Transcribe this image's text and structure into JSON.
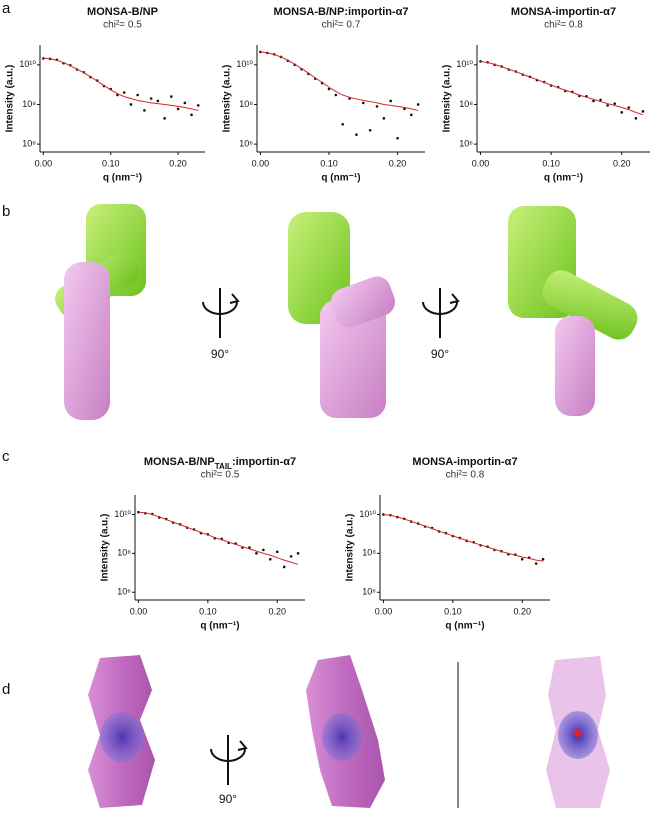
{
  "panel_labels": [
    "a",
    "b",
    "c",
    "d"
  ],
  "rotation_labels": [
    "90°",
    "90°",
    "90°"
  ],
  "chart_data": [
    {
      "type": "scatter",
      "title": "MONSA-B/NP",
      "subtitle": "chi²= 0.5",
      "x_label": "q (nm⁻¹)",
      "y_label": "Intensity (a.u.)",
      "log_y": true,
      "xlim": [
        -0.005,
        0.24
      ],
      "xticks": [
        {
          "value": 0,
          "label": "0.00"
        },
        {
          "value": 0.1,
          "label": "0.10"
        },
        {
          "value": 0.2,
          "label": "0.20"
        }
      ],
      "ylim": [
        400000,
        100000000000
      ],
      "yticks": [
        {
          "value": 1000000,
          "label": "10⁶"
        },
        {
          "value": 100000000,
          "label": "10⁸"
        },
        {
          "value": 10000000000,
          "label": "10¹⁰"
        }
      ],
      "x": [
        0,
        0.01,
        0.02,
        0.03,
        0.04,
        0.05,
        0.06,
        0.07,
        0.08,
        0.09,
        0.1,
        0.11,
        0.12,
        0.13,
        0.14,
        0.15,
        0.16,
        0.17,
        0.18,
        0.19,
        0.2,
        0.21,
        0.22,
        0.23
      ],
      "series": [
        {
          "mode": "points",
          "color": "#111111",
          "values": [
            21000000000,
            20000000000,
            18000000000,
            12000000000,
            9500000000,
            5800000000,
            4200000000,
            2400000000,
            1600000000,
            850000000,
            600000000,
            300000000,
            400000000,
            100000000,
            300000000,
            50000000,
            200000000,
            150000000,
            20000000,
            250000000,
            60000000,
            120000000,
            30000000,
            90000000
          ]
        },
        {
          "mode": "line",
          "color": "#d62728",
          "values": [
            22000000000,
            20000000000,
            17000000000,
            13000000000,
            9000000000,
            6000000000,
            4000000000,
            2500000000,
            1500000000,
            900000000,
            550000000,
            350000000,
            250000000,
            200000000,
            160000000,
            140000000,
            120000000,
            110000000,
            100000000,
            90000000,
            80000000,
            70000000,
            60000000,
            50000000
          ]
        }
      ]
    },
    {
      "type": "scatter",
      "title": "MONSA-B/NP:importin-α7",
      "subtitle": "chi²= 0.7",
      "x_label": "q (nm⁻¹)",
      "y_label": "Intensity (a.u.)",
      "log_y": true,
      "xlim": [
        -0.005,
        0.24
      ],
      "xticks": [
        {
          "value": 0,
          "label": "0.00"
        },
        {
          "value": 0.1,
          "label": "0.10"
        },
        {
          "value": 0.2,
          "label": "0.20"
        }
      ],
      "ylim": [
        400000,
        100000000000
      ],
      "yticks": [
        {
          "value": 1000000,
          "label": "10⁶"
        },
        {
          "value": 100000000,
          "label": "10⁸"
        },
        {
          "value": 10000000000,
          "label": "10¹⁰"
        }
      ],
      "x": [
        0,
        0.01,
        0.02,
        0.03,
        0.04,
        0.05,
        0.06,
        0.07,
        0.08,
        0.09,
        0.1,
        0.11,
        0.12,
        0.13,
        0.14,
        0.15,
        0.16,
        0.17,
        0.18,
        0.19,
        0.2,
        0.21,
        0.22,
        0.23
      ],
      "series": [
        {
          "mode": "points",
          "color": "#111111",
          "values": [
            45000000000,
            40000000000,
            34000000000,
            25000000000,
            16000000000,
            10000000000,
            6000000000,
            3500000000,
            2000000000,
            1200000000,
            600000000,
            300000000,
            10000000,
            200000000,
            3000000,
            120000000,
            5000000,
            80000000,
            20000000,
            150000000,
            2000000,
            60000000,
            30000000,
            100000000
          ]
        },
        {
          "mode": "line",
          "color": "#d62728",
          "values": [
            45000000000,
            40000000000,
            33000000000,
            25000000000,
            17000000000,
            11000000000,
            6500000000,
            3800000000,
            2200000000,
            1300000000,
            750000000,
            450000000,
            300000000,
            230000000,
            190000000,
            160000000,
            140000000,
            120000000,
            100000000,
            90000000,
            80000000,
            70000000,
            60000000,
            50000000
          ]
        }
      ]
    },
    {
      "type": "scatter",
      "title": "MONSA-importin-α7",
      "subtitle": "chi²= 0.8",
      "x_label": "q (nm⁻¹)",
      "y_label": "Intensity (a.u.)",
      "log_y": true,
      "xlim": [
        -0.005,
        0.24
      ],
      "xticks": [
        {
          "value": 0,
          "label": "0.00"
        },
        {
          "value": 0.1,
          "label": "0.10"
        },
        {
          "value": 0.2,
          "label": "0.20"
        }
      ],
      "ylim": [
        400000,
        100000000000
      ],
      "yticks": [
        {
          "value": 1000000,
          "label": "10⁶"
        },
        {
          "value": 100000000,
          "label": "10⁸"
        },
        {
          "value": 10000000000,
          "label": "10¹⁰"
        }
      ],
      "x": [
        0,
        0.01,
        0.02,
        0.03,
        0.04,
        0.05,
        0.06,
        0.07,
        0.08,
        0.09,
        0.1,
        0.11,
        0.12,
        0.13,
        0.14,
        0.15,
        0.16,
        0.17,
        0.18,
        0.19,
        0.2,
        0.21,
        0.22,
        0.23
      ],
      "series": [
        {
          "mode": "points",
          "color": "#111111",
          "values": [
            15000000000,
            13500000000,
            10000000000,
            8200000000,
            5800000000,
            4600000000,
            3200000000,
            2500000000,
            1700000000,
            1350000000,
            900000000,
            750000000,
            480000000,
            430000000,
            270000000,
            260000000,
            150000000,
            170000000,
            90000000,
            110000000,
            40000000,
            70000000,
            20000000,
            45000000
          ]
        },
        {
          "mode": "line",
          "color": "#d62728",
          "values": [
            15000000000,
            13000000000,
            10500000000,
            8000000000,
            6000000000,
            4500000000,
            3300000000,
            2400000000,
            1800000000,
            1300000000,
            950000000,
            700000000,
            520000000,
            400000000,
            300000000,
            230000000,
            180000000,
            140000000,
            110000000,
            90000000,
            70000000,
            55000000,
            40000000,
            30000000
          ]
        }
      ]
    },
    {
      "type": "scatter",
      "title": [
        "MONSA-B/NP",
        "TAIL",
        ":importin-α7"
      ],
      "subtitle": "chi²= 0.5",
      "x_label": "q (nm⁻¹)",
      "y_label": "Intensity (a.u.)",
      "log_y": true,
      "xlim": [
        -0.005,
        0.24
      ],
      "xticks": [
        {
          "value": 0,
          "label": "0.00"
        },
        {
          "value": 0.1,
          "label": "0.10"
        },
        {
          "value": 0.2,
          "label": "0.20"
        }
      ],
      "ylim": [
        400000,
        100000000000
      ],
      "yticks": [
        {
          "value": 1000000,
          "label": "10⁶"
        },
        {
          "value": 100000000,
          "label": "10⁸"
        },
        {
          "value": 10000000000,
          "label": "10¹⁰"
        }
      ],
      "x": [
        0,
        0.01,
        0.02,
        0.03,
        0.04,
        0.05,
        0.06,
        0.07,
        0.08,
        0.09,
        0.1,
        0.11,
        0.12,
        0.13,
        0.14,
        0.15,
        0.16,
        0.17,
        0.18,
        0.19,
        0.2,
        0.21,
        0.22,
        0.23
      ],
      "series": [
        {
          "mode": "points",
          "color": "#111111",
          "values": [
            13000000000,
            11500000000,
            10500000000,
            7000000000,
            5800000000,
            3800000000,
            3100000000,
            2100000000,
            1700000000,
            1100000000,
            950000000,
            600000000,
            550000000,
            350000000,
            320000000,
            200000000,
            200000000,
            100000000,
            150000000,
            50000000,
            120000000,
            20000000,
            70000000,
            100000000
          ]
        },
        {
          "mode": "line",
          "color": "#d62728",
          "values": [
            13000000000,
            12000000000,
            10000000000,
            7500000000,
            5500000000,
            4000000000,
            3000000000,
            2200000000,
            1600000000,
            1200000000,
            900000000,
            650000000,
            500000000,
            380000000,
            290000000,
            220000000,
            170000000,
            130000000,
            100000000,
            80000000,
            60000000,
            45000000,
            35000000,
            27000000
          ]
        }
      ]
    },
    {
      "type": "scatter",
      "title": "MONSA-importin-α7",
      "subtitle": "chi²= 0.8",
      "x_label": "q (nm⁻¹)",
      "y_label": "Intensity (a.u.)",
      "log_y": true,
      "xlim": [
        -0.005,
        0.24
      ],
      "xticks": [
        {
          "value": 0,
          "label": "0.00"
        },
        {
          "value": 0.1,
          "label": "0.10"
        },
        {
          "value": 0.2,
          "label": "0.20"
        }
      ],
      "ylim": [
        400000,
        100000000000
      ],
      "yticks": [
        {
          "value": 1000000,
          "label": "10⁶"
        },
        {
          "value": 100000000,
          "label": "10⁸"
        },
        {
          "value": 10000000000,
          "label": "10¹⁰"
        }
      ],
      "x": [
        0,
        0.01,
        0.02,
        0.03,
        0.04,
        0.05,
        0.06,
        0.07,
        0.08,
        0.09,
        0.1,
        0.11,
        0.12,
        0.13,
        0.14,
        0.15,
        0.16,
        0.17,
        0.18,
        0.19,
        0.2,
        0.21,
        0.22,
        0.23
      ],
      "series": [
        {
          "mode": "points",
          "color": "#111111",
          "values": [
            10000000000,
            9200000000,
            7300000000,
            6000000000,
            4300000000,
            3400000000,
            2400000000,
            2000000000,
            1350000000,
            1100000000,
            780000000,
            620000000,
            440000000,
            370000000,
            260000000,
            220000000,
            150000000,
            130000000,
            90000000,
            85000000,
            50000000,
            60000000,
            30000000,
            50000000
          ]
        },
        {
          "mode": "line",
          "color": "#d62728",
          "values": [
            10000000000,
            9000000000,
            7500000000,
            5800000000,
            4400000000,
            3300000000,
            2500000000,
            1900000000,
            1400000000,
            1050000000,
            800000000,
            600000000,
            460000000,
            350000000,
            270000000,
            210000000,
            160000000,
            125000000,
            100000000,
            80000000,
            65000000,
            55000000,
            45000000,
            40000000
          ]
        }
      ]
    }
  ]
}
